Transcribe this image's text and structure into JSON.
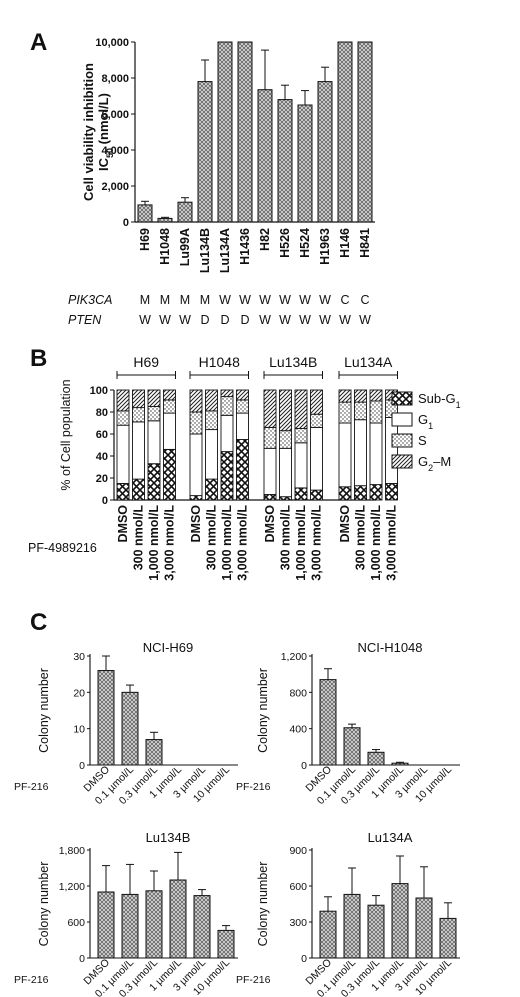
{
  "panel_labels": {
    "a": "A",
    "b": "B",
    "c": "C"
  },
  "panel_a": {
    "ylabel_line1": "Cell viability inhibition",
    "ylabel_ic": "IC",
    "ylabel_sub": "50",
    "ylabel_unit": " (nmol/L)",
    "gene_rows": [
      {
        "gene": "PIK3CA",
        "values": [
          "M",
          "M",
          "M",
          "M",
          "W",
          "W",
          "W",
          "W",
          "W",
          "W",
          "C",
          "C"
        ]
      },
      {
        "gene": "PTEN",
        "values": [
          "W",
          "W",
          "W",
          "D",
          "D",
          "D",
          "W",
          "W",
          "W",
          "W",
          "W",
          "W"
        ]
      }
    ]
  },
  "panel_b": {
    "ylabel": "% of Cell population",
    "treatment_label": "PF-4989216",
    "groups": [
      "H69",
      "H1048",
      "Lu134B",
      "Lu134A"
    ],
    "doses": [
      "DMSO",
      "300 nmol/L",
      "1,000 nmol/L",
      "3,000 nmol/L"
    ],
    "legend": [
      {
        "label": "Sub-G",
        "sub": "1",
        "pattern": "crosshatch"
      },
      {
        "label": "G",
        "sub": "1",
        "pattern": "white"
      },
      {
        "label": "S",
        "sub": "",
        "pattern": "dots"
      },
      {
        "label": "G",
        "sub": "2",
        "suffix": "–M",
        "pattern": "diagonal"
      }
    ]
  },
  "panel_c": {
    "treatment_label": "PF-216",
    "ylabel": "Colony number"
  },
  "chart_data": [
    {
      "id": "A",
      "type": "bar",
      "categories": [
        "H69",
        "H1048",
        "Lu99A",
        "Lu134B",
        "Lu134A",
        "H1436",
        "H82",
        "H526",
        "H524",
        "H1963",
        "H146",
        "H841"
      ],
      "values": [
        950,
        200,
        1100,
        7800,
        10000,
        10000,
        7350,
        6800,
        6500,
        7800,
        10000,
        10000
      ],
      "errors": [
        200,
        60,
        250,
        1200,
        0,
        0,
        2200,
        800,
        800,
        800,
        0,
        0
      ],
      "ylabel": "Cell viability inhibition IC50 (nmol/L)",
      "ylim": [
        0,
        10000
      ],
      "yticks": [
        "0",
        "2,000",
        "4,000",
        "6,000",
        "8,000",
        "10,000"
      ]
    },
    {
      "id": "B",
      "type": "bar",
      "stacked": true,
      "ylabel": "% of Cell population",
      "ylim": [
        0,
        100
      ],
      "yticks": [
        "0",
        "20",
        "40",
        "60",
        "80",
        "100"
      ],
      "groups": [
        "H69",
        "H1048",
        "Lu134B",
        "Lu134A"
      ],
      "categories": [
        "DMSO",
        "300 nmol/L",
        "1,000 nmol/L",
        "3,000 nmol/L"
      ],
      "series_order": [
        "Sub-G1",
        "G1",
        "S",
        "G2–M"
      ],
      "bars": [
        [
          15,
          53,
          13,
          19
        ],
        [
          19,
          52,
          13,
          16
        ],
        [
          33,
          39,
          13,
          15
        ],
        [
          46,
          33,
          12,
          9
        ],
        [
          4,
          56,
          20,
          20
        ],
        [
          19,
          45,
          17,
          19
        ],
        [
          44,
          33,
          17,
          6
        ],
        [
          55,
          24,
          12,
          9
        ],
        [
          5,
          42,
          19,
          34
        ],
        [
          3,
          44,
          16,
          37
        ],
        [
          11,
          41,
          13,
          35
        ],
        [
          9,
          57,
          12,
          22
        ],
        [
          12,
          58,
          19,
          11
        ],
        [
          13,
          60,
          16,
          11
        ],
        [
          14,
          56,
          20,
          10
        ],
        [
          15,
          60,
          16,
          9
        ]
      ]
    },
    {
      "id": "C1",
      "type": "bar",
      "title": "NCI-H69",
      "ylabel": "Colony number",
      "categories": [
        "DMSO",
        "0.1 µmol/L",
        "0.3 µmol/L",
        "1 µmol/L",
        "3 µmol/L",
        "10 µmol/L"
      ],
      "values": [
        26,
        20,
        7,
        0,
        0,
        0
      ],
      "errors": [
        4,
        2,
        2,
        0,
        0,
        0
      ],
      "ylim": [
        0,
        30
      ],
      "yticks": [
        "0",
        "10",
        "20",
        "30"
      ]
    },
    {
      "id": "C2",
      "type": "bar",
      "title": "NCI-H1048",
      "ylabel": "Colony number",
      "categories": [
        "DMSO",
        "0.1 µmol/L",
        "0.3 µmol/L",
        "1 µmol/L",
        "3 µmol/L",
        "10 µmol/L"
      ],
      "values": [
        940,
        410,
        140,
        20,
        0,
        0
      ],
      "errors": [
        120,
        40,
        30,
        10,
        0,
        0
      ],
      "ylim": [
        0,
        1200
      ],
      "yticks": [
        "0",
        "400",
        "800",
        "1,200"
      ]
    },
    {
      "id": "C3",
      "type": "bar",
      "title": "Lu134B",
      "ylabel": "Colony number",
      "categories": [
        "DMSO",
        "0.1 µmol/L",
        "0.3 µmol/L",
        "1 µmol/L",
        "3 µmol/L",
        "10 µmol/L"
      ],
      "values": [
        1100,
        1060,
        1120,
        1300,
        1040,
        460
      ],
      "errors": [
        440,
        500,
        330,
        460,
        100,
        80
      ],
      "ylim": [
        0,
        1800
      ],
      "yticks": [
        "0",
        "600",
        "1,200",
        "1,800"
      ]
    },
    {
      "id": "C4",
      "type": "bar",
      "title": "Lu134A",
      "ylabel": "Colony number",
      "categories": [
        "DMSO",
        "0.1 µmol/L",
        "0.3 µmol/L",
        "1 µmol/L",
        "3 µmol/L",
        "10 µmol/L"
      ],
      "values": [
        390,
        530,
        440,
        620,
        500,
        330
      ],
      "errors": [
        120,
        220,
        80,
        230,
        260,
        130
      ],
      "ylim": [
        0,
        900
      ],
      "yticks": [
        "0",
        "300",
        "600",
        "900"
      ]
    }
  ]
}
